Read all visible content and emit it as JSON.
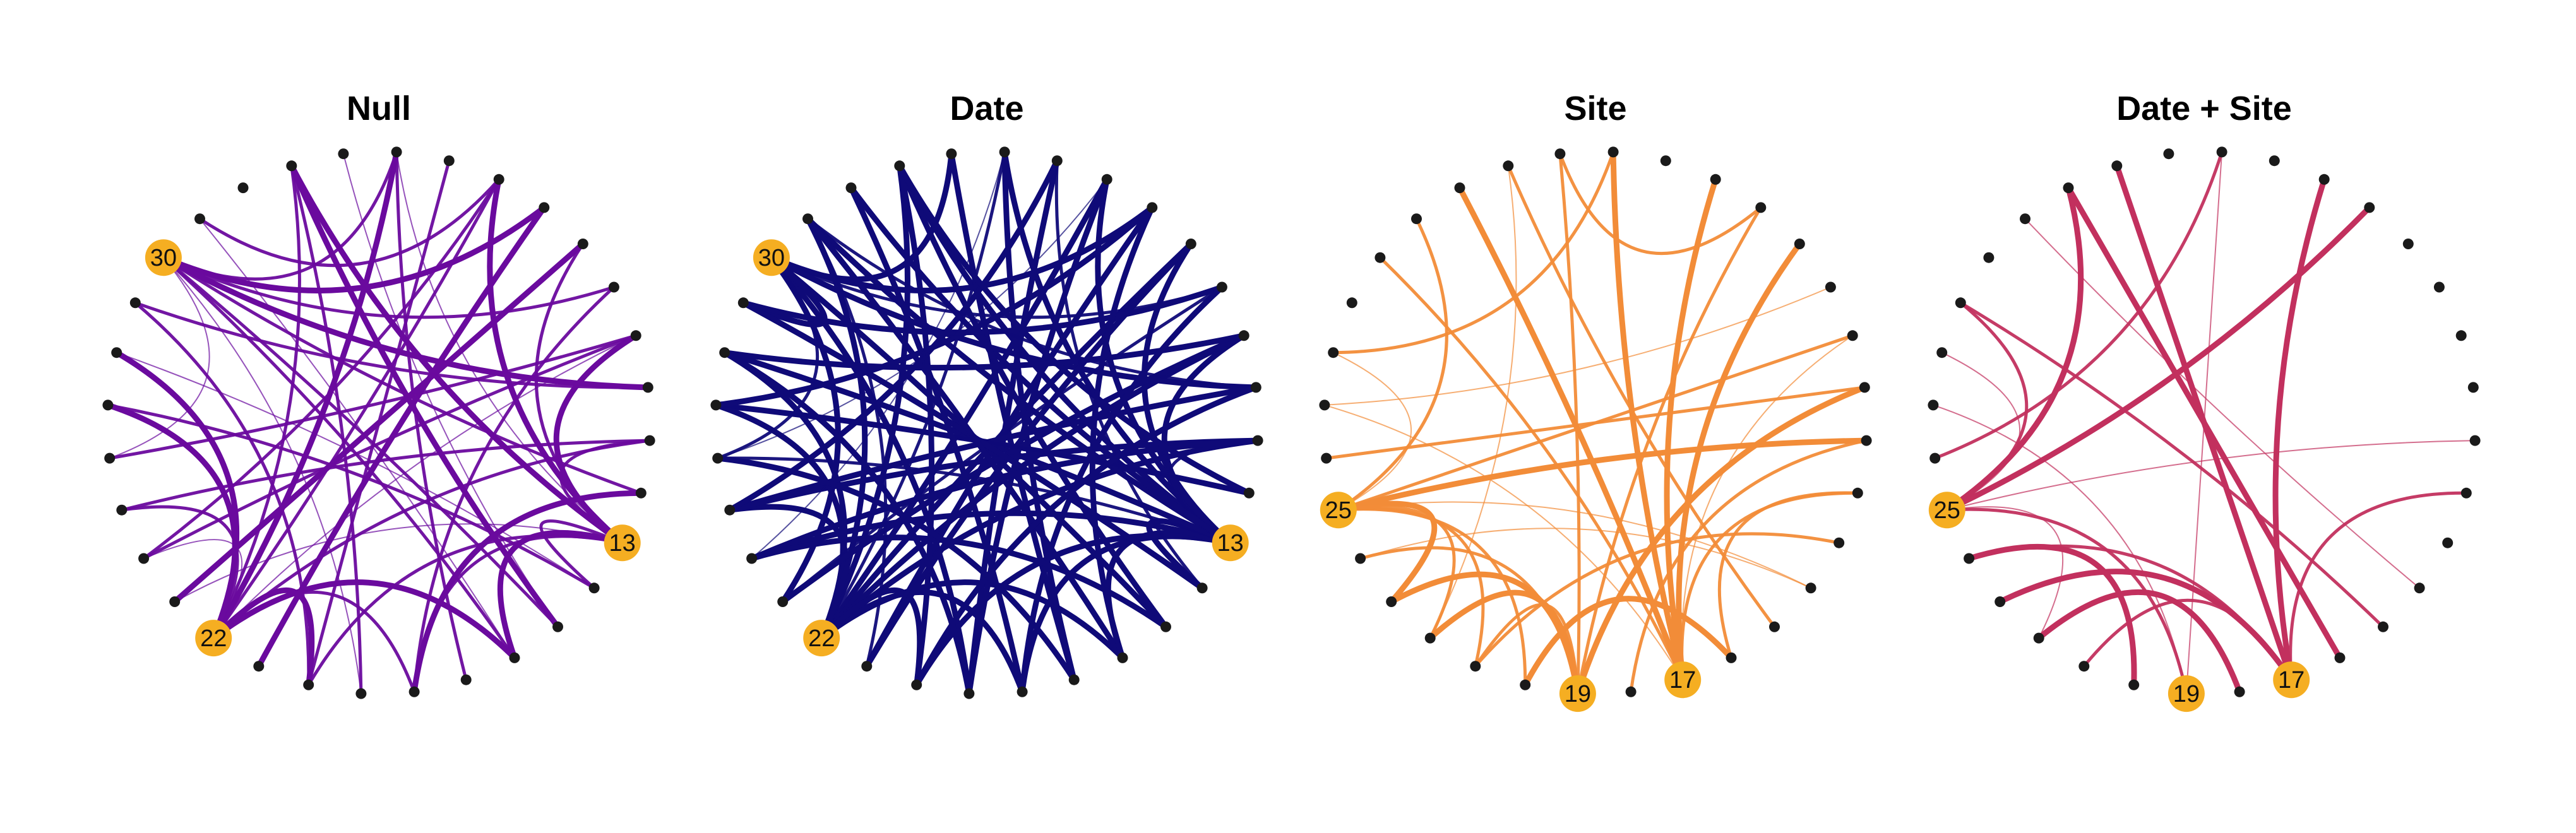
{
  "figure": {
    "background": "#ffffff",
    "node_count": 32,
    "node_color": "#1a1a1a",
    "hub_color": "#f5ae22"
  },
  "panels": [
    {
      "title": "Null",
      "edge_color": "#6a0a9e",
      "hubs": [
        "13",
        "22",
        "30"
      ],
      "edges": [
        [
          13,
          1,
          3
        ],
        [
          13,
          5,
          3
        ],
        [
          13,
          7,
          2
        ],
        [
          13,
          9,
          3
        ],
        [
          13,
          14,
          2
        ],
        [
          13,
          16,
          3
        ],
        [
          13,
          18,
          2
        ],
        [
          13,
          20,
          2
        ],
        [
          13,
          3,
          1
        ],
        [
          13,
          11,
          2
        ],
        [
          22,
          1,
          2
        ],
        [
          22,
          3,
          3
        ],
        [
          22,
          5,
          2
        ],
        [
          22,
          27,
          3
        ],
        [
          22,
          25,
          2
        ],
        [
          22,
          28,
          3
        ],
        [
          22,
          24,
          1
        ],
        [
          22,
          16,
          3
        ],
        [
          22,
          18,
          2
        ],
        [
          22,
          20,
          3
        ],
        [
          22,
          11,
          2
        ],
        [
          22,
          9,
          1
        ],
        [
          30,
          6,
          3
        ],
        [
          30,
          8,
          2
        ],
        [
          30,
          10,
          3
        ],
        [
          30,
          16,
          2
        ],
        [
          30,
          19,
          1
        ],
        [
          30,
          15,
          2
        ],
        [
          30,
          12,
          2
        ],
        [
          30,
          3,
          2
        ],
        [
          30,
          26,
          1
        ],
        [
          7,
          23,
          3
        ],
        [
          9,
          24,
          2
        ],
        [
          3,
          17,
          2
        ],
        [
          2,
          15,
          1
        ],
        [
          4,
          20,
          2
        ],
        [
          6,
          21,
          3
        ],
        [
          8,
          18,
          2
        ],
        [
          10,
          29,
          2
        ],
        [
          14,
          27,
          2
        ],
        [
          16,
          31,
          1
        ],
        [
          18,
          12,
          3
        ],
        [
          25,
          11,
          2
        ],
        [
          19,
          1,
          2
        ],
        [
          29,
          20,
          2
        ],
        [
          28,
          14,
          1
        ],
        [
          24,
          5,
          2
        ],
        [
          1,
          15,
          3
        ],
        [
          5,
          31,
          2
        ],
        [
          26,
          9,
          2
        ],
        [
          23,
          13,
          1
        ]
      ]
    },
    {
      "title": "Date",
      "edge_color": "#0f0a78",
      "hubs": [
        "13",
        "22",
        "30"
      ],
      "edges": [
        [
          13,
          1,
          3
        ],
        [
          13,
          3,
          3
        ],
        [
          13,
          5,
          3
        ],
        [
          13,
          7,
          3
        ],
        [
          13,
          9,
          3
        ],
        [
          13,
          11,
          2
        ],
        [
          13,
          14,
          3
        ],
        [
          13,
          16,
          3
        ],
        [
          13,
          18,
          3
        ],
        [
          13,
          20,
          3
        ],
        [
          13,
          24,
          3
        ],
        [
          13,
          26,
          2
        ],
        [
          13,
          28,
          3
        ],
        [
          13,
          31,
          3
        ],
        [
          13,
          0,
          3
        ],
        [
          22,
          1,
          3
        ],
        [
          22,
          3,
          2
        ],
        [
          22,
          5,
          3
        ],
        [
          22,
          7,
          3
        ],
        [
          22,
          9,
          3
        ],
        [
          22,
          11,
          3
        ],
        [
          22,
          16,
          3
        ],
        [
          22,
          18,
          3
        ],
        [
          22,
          20,
          3
        ],
        [
          22,
          25,
          3
        ],
        [
          22,
          27,
          3
        ],
        [
          22,
          28,
          3
        ],
        [
          22,
          31,
          3
        ],
        [
          30,
          2,
          3
        ],
        [
          30,
          6,
          3
        ],
        [
          30,
          8,
          2
        ],
        [
          30,
          10,
          3
        ],
        [
          30,
          15,
          3
        ],
        [
          30,
          19,
          3
        ],
        [
          30,
          23,
          3
        ],
        [
          30,
          26,
          2
        ],
        [
          30,
          29,
          3
        ],
        [
          2,
          17,
          3
        ],
        [
          4,
          19,
          3
        ],
        [
          6,
          21,
          3
        ],
        [
          8,
          23,
          2
        ],
        [
          10,
          25,
          3
        ],
        [
          12,
          27,
          3
        ],
        [
          14,
          29,
          3
        ],
        [
          15,
          1,
          3
        ],
        [
          17,
          3,
          3
        ],
        [
          19,
          5,
          3
        ],
        [
          21,
          7,
          3
        ],
        [
          23,
          9,
          3
        ],
        [
          25,
          11,
          3
        ],
        [
          27,
          12,
          2
        ],
        [
          29,
          14,
          3
        ],
        [
          31,
          16,
          3
        ],
        [
          0,
          18,
          3
        ],
        [
          1,
          20,
          3
        ],
        [
          4,
          25,
          3
        ],
        [
          6,
          27,
          3
        ],
        [
          8,
          29,
          3
        ],
        [
          10,
          31,
          2
        ],
        [
          12,
          1,
          3
        ],
        [
          3,
          24,
          1
        ],
        [
          5,
          26,
          1
        ],
        [
          9,
          28,
          3
        ],
        [
          11,
          24,
          3
        ],
        [
          14,
          4,
          2
        ],
        [
          16,
          6,
          3
        ],
        [
          18,
          8,
          3
        ],
        [
          20,
          10,
          3
        ],
        [
          24,
          15,
          3
        ],
        [
          26,
          17,
          3
        ],
        [
          28,
          19,
          3
        ],
        [
          31,
          21,
          2
        ]
      ]
    },
    {
      "title": "Site",
      "edge_color": "#f28c38",
      "hubs": [
        "17",
        "19",
        "25"
      ],
      "edges": [
        [
          17,
          0,
          3
        ],
        [
          17,
          3,
          3
        ],
        [
          17,
          5,
          3
        ],
        [
          17,
          7,
          3
        ],
        [
          17,
          9,
          1
        ],
        [
          17,
          12,
          2
        ],
        [
          17,
          30,
          2
        ],
        [
          17,
          27,
          1
        ],
        [
          19,
          23,
          3
        ],
        [
          19,
          22,
          3
        ],
        [
          19,
          21,
          2
        ],
        [
          19,
          2,
          2
        ],
        [
          19,
          6,
          2
        ],
        [
          19,
          10,
          3
        ],
        [
          19,
          24,
          2
        ],
        [
          25,
          14,
          1
        ],
        [
          25,
          11,
          3
        ],
        [
          25,
          9,
          2
        ],
        [
          25,
          31,
          2
        ],
        [
          25,
          21,
          2
        ],
        [
          25,
          28,
          1
        ],
        [
          25,
          23,
          3
        ],
        [
          25,
          20,
          2
        ],
        [
          25,
          22,
          2
        ],
        [
          16,
          12,
          2
        ],
        [
          15,
          1,
          2
        ],
        [
          20,
          16,
          3
        ],
        [
          6,
          2,
          2
        ],
        [
          8,
          27,
          1
        ],
        [
          10,
          26,
          2
        ],
        [
          11,
          18,
          2
        ],
        [
          13,
          21,
          2
        ],
        [
          14,
          24,
          1
        ],
        [
          3,
          28,
          2
        ],
        [
          1,
          22,
          1
        ]
      ]
    },
    {
      "title": "Date + Site",
      "edge_color": "#c2305e",
      "hubs": [
        "17",
        "19",
        "25"
      ],
      "edges": [
        [
          17,
          5,
          3
        ],
        [
          17,
          1,
          3
        ],
        [
          17,
          12,
          2
        ],
        [
          17,
          23,
          3
        ],
        [
          17,
          21,
          2
        ],
        [
          17,
          24,
          2
        ],
        [
          19,
          3,
          1
        ],
        [
          19,
          27,
          1
        ],
        [
          19,
          25,
          2
        ],
        [
          25,
          6,
          3
        ],
        [
          25,
          29,
          2
        ],
        [
          25,
          11,
          1
        ],
        [
          25,
          28,
          1
        ],
        [
          25,
          0,
          3
        ],
        [
          25,
          22,
          1
        ],
        [
          16,
          0,
          3
        ],
        [
          18,
          22,
          3
        ],
        [
          14,
          31,
          1
        ],
        [
          15,
          29,
          2
        ],
        [
          20,
          24,
          3
        ],
        [
          26,
          3,
          2
        ]
      ]
    }
  ]
}
